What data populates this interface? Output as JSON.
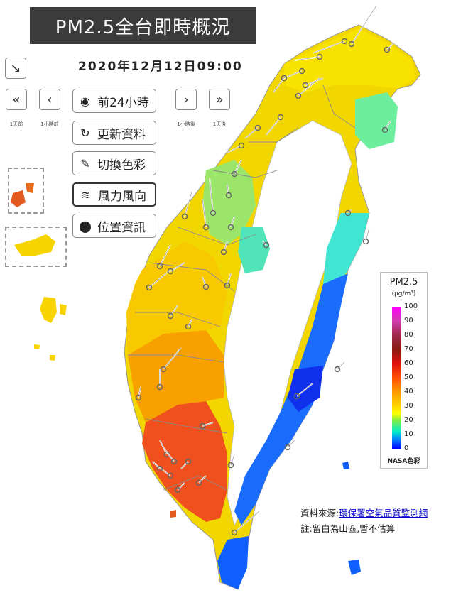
{
  "title": "PM2.5全台即時概況",
  "datetime": "2020年12月12日09:00",
  "nav": {
    "prev_day_label": "1天前",
    "prev_hour_label": "1小時前",
    "next_hour_label": "1小時後",
    "next_day_label": "1天後"
  },
  "buttons": {
    "past24": "前24小時",
    "refresh": "更新資料",
    "color": "切換色彩",
    "wind": "風力風向",
    "location": "位置資訊"
  },
  "legend": {
    "title": "PM2.5",
    "unit": "(μg/m³)",
    "ticks": [
      "100",
      "90",
      "80",
      "70",
      "60",
      "50",
      "40",
      "30",
      "20",
      "10",
      "0"
    ],
    "footer": "NASA色彩"
  },
  "source": {
    "prefix": "資料來源:",
    "link": "環保署空氣品質監測網"
  },
  "note": "註:留白為山區,暫不估算",
  "colors": {
    "title_bg": "#3b3b3b",
    "link": "#0000cc",
    "high": "#ff3c00",
    "mid": "#ffd200",
    "low": "#28e6c8",
    "lowest": "#1030ff"
  }
}
